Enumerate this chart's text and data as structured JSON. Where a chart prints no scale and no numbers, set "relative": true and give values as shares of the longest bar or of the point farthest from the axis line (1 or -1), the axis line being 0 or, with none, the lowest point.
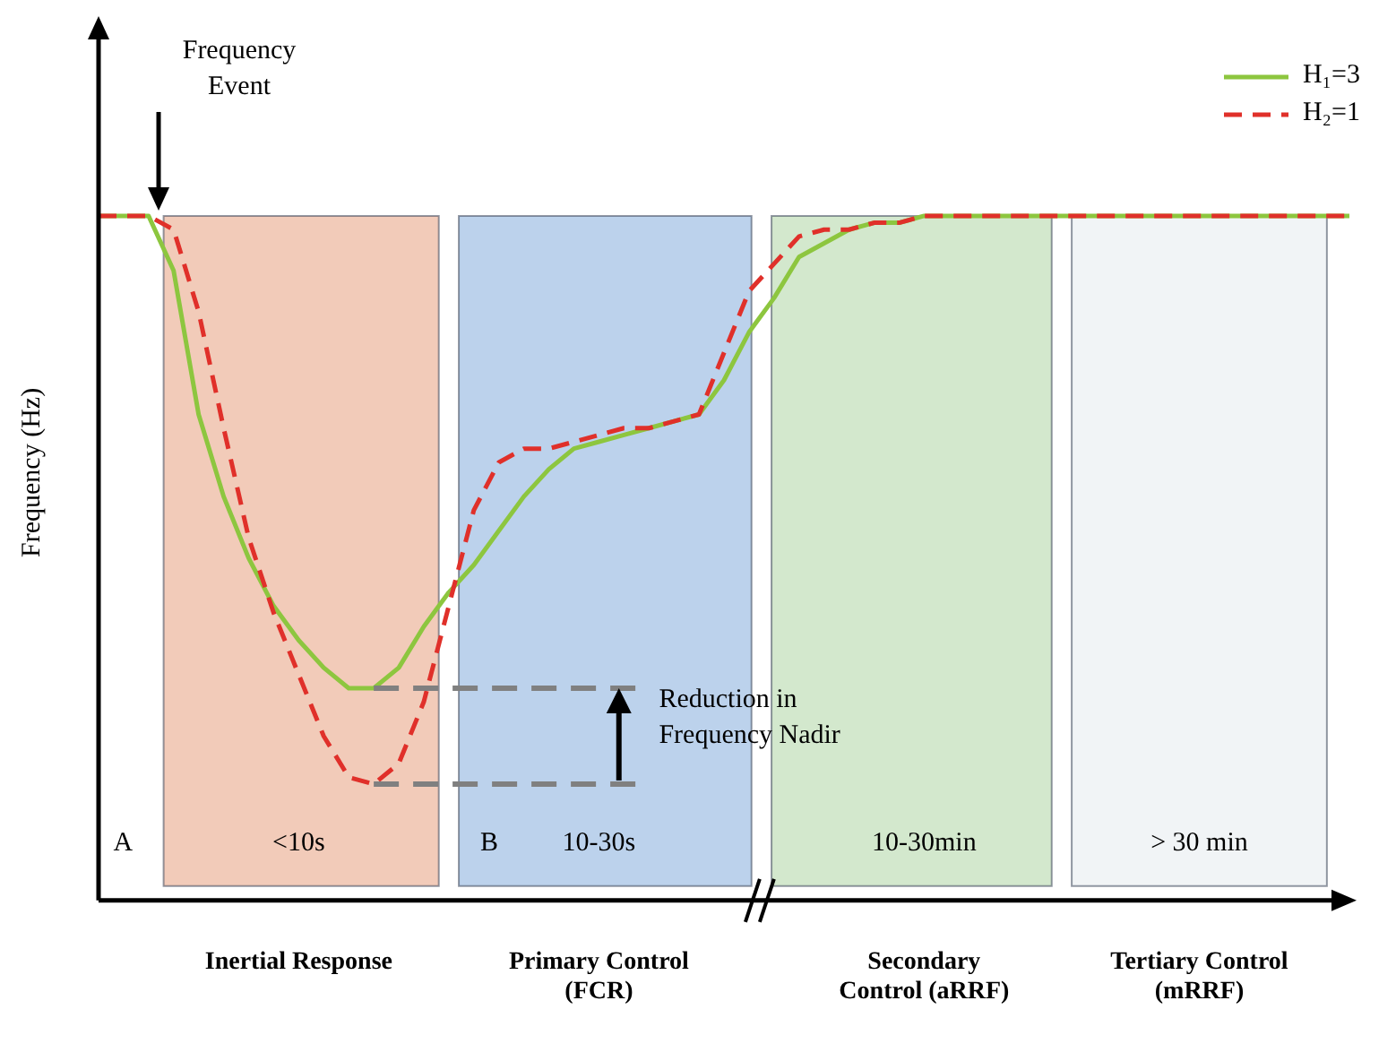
{
  "chart_data": {
    "type": "line",
    "relative": true,
    "ylabel": "Frequency (Hz)",
    "tick_labels": "x",
    "legend": "top right",
    "marker": "none",
    "categories": [
      null,
      null,
      null,
      null,
      null,
      null,
      null,
      null,
      "Inertial Response",
      null,
      null,
      null,
      null,
      null,
      null,
      null,
      null,
      null,
      null,
      null,
      "Primary Control (FCR)",
      null,
      null,
      null,
      null,
      null,
      null,
      null,
      null,
      null,
      null,
      null,
      null,
      "Secondary Control (aRRF)",
      null,
      null,
      null,
      null,
      null,
      null,
      null,
      null,
      null,
      null,
      "Tertiary Control (mRRF)",
      null,
      null,
      null,
      null,
      null,
      null
    ],
    "series": [
      {
        "name": "H₁=3",
        "color": "#8dc63f",
        "line_style": "solid",
        "values": [
          1.0,
          1.0,
          1.0,
          0.92,
          0.71,
          0.59,
          0.5,
          0.43,
          0.38,
          0.34,
          0.31,
          0.31,
          0.34,
          0.4,
          0.45,
          0.49,
          0.54,
          0.59,
          0.63,
          0.66,
          0.67,
          0.68,
          0.69,
          0.7,
          0.71,
          0.76,
          0.83,
          0.88,
          0.94,
          0.96,
          0.98,
          0.99,
          0.99,
          1.0,
          1.0,
          1.0,
          1.0,
          1.0,
          1.0,
          1.0,
          1.0,
          1.0,
          1.0,
          1.0,
          1.0,
          1.0,
          1.0,
          1.0,
          1.0,
          1.0,
          1.0
        ]
      },
      {
        "name": "H₂=1",
        "color": "#e0302a",
        "line_style": "dashed",
        "values": [
          1.0,
          1.0,
          1.0,
          0.98,
          0.86,
          0.69,
          0.53,
          0.42,
          0.33,
          0.24,
          0.18,
          0.17,
          0.2,
          0.29,
          0.43,
          0.57,
          0.64,
          0.66,
          0.66,
          0.67,
          0.68,
          0.69,
          0.69,
          0.7,
          0.71,
          0.8,
          0.89,
          0.93,
          0.97,
          0.98,
          0.98,
          0.99,
          0.99,
          1.0,
          1.0,
          1.0,
          1.0,
          1.0,
          1.0,
          1.0,
          1.0,
          1.0,
          1.0,
          1.0,
          1.0,
          1.0,
          1.0,
          1.0,
          1.0,
          1.0,
          1.0
        ]
      }
    ],
    "annotations": [
      "Frequency Event",
      "Reduction in Frequency Nadir",
      "A",
      "B",
      "<10s",
      "10-30s",
      "10-30min",
      "> 30 min"
    ]
  }
}
